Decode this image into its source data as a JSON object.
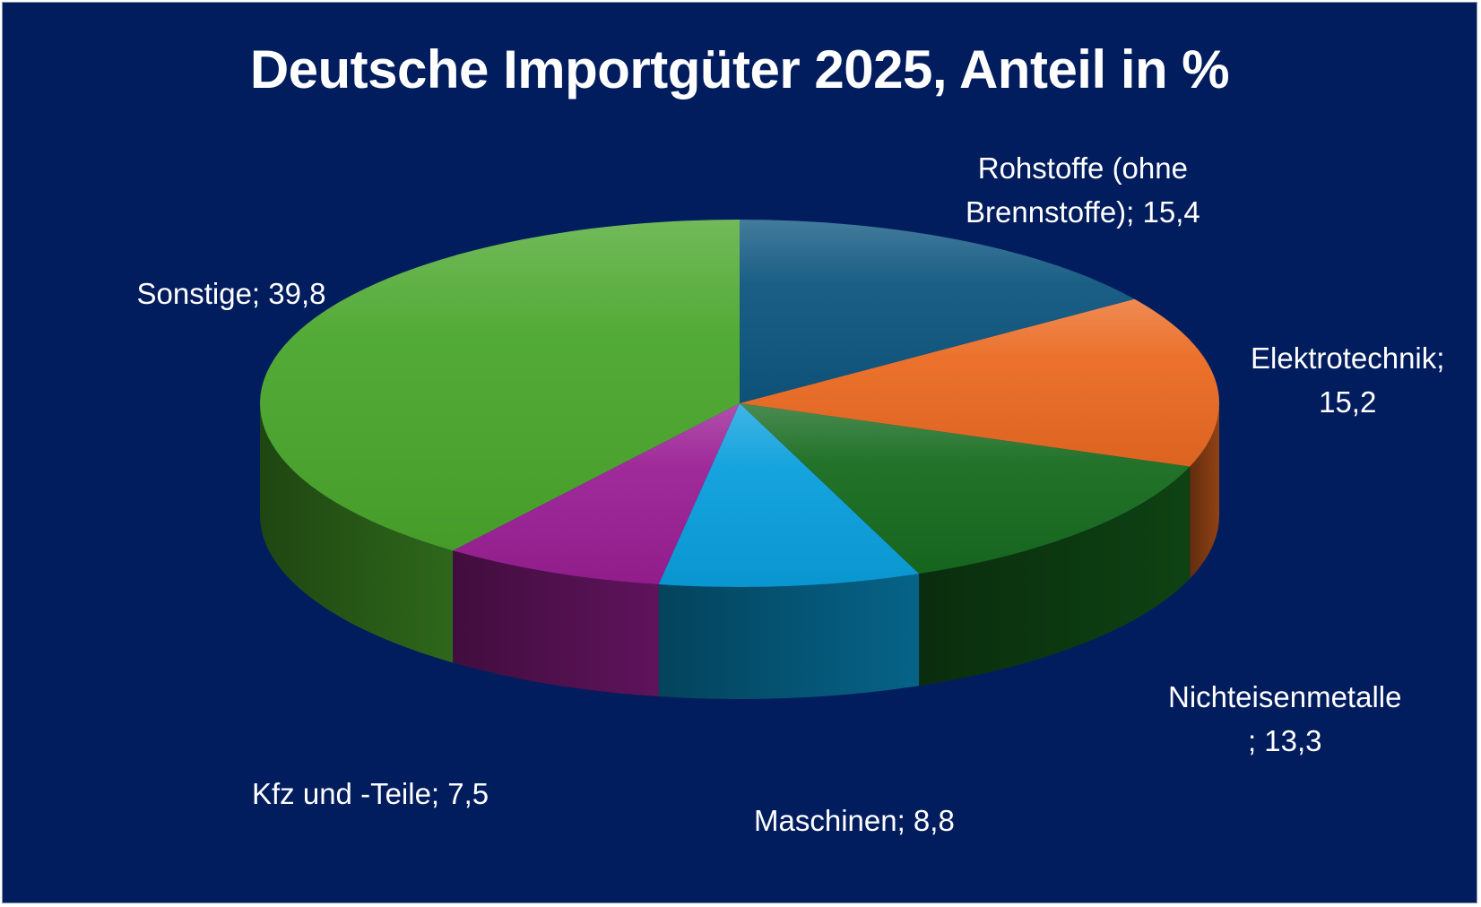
{
  "chart_data": {
    "type": "pie",
    "title": "Deutsche Importgüter 2025, Anteil in %",
    "slices": [
      {
        "category": "Rohstoffe (ohne Brennstoffe)",
        "value": 15.4,
        "color": "#0e567f",
        "label_lines": [
          "Rohstoffe (ohne",
          "Brennstoffe); 15,4"
        ]
      },
      {
        "category": "Elektrotechnik",
        "value": 15.2,
        "color": "#ea6a22",
        "label_lines": [
          "Elektrotechnik;",
          "15,2"
        ]
      },
      {
        "category": "Nichteisenmetalle",
        "value": 13.3,
        "color": "#176b1f",
        "label_lines": [
          "Nichteisenmetalle",
          "; 13,3"
        ]
      },
      {
        "category": "Maschinen",
        "value": 8.8,
        "color": "#0a9fdc",
        "label_lines": [
          "Maschinen; 8,8"
        ]
      },
      {
        "category": "Kfz und -Teile",
        "value": 7.5,
        "color": "#9a1f94",
        "label_lines": [
          "Kfz und -Teile; 7,5"
        ]
      },
      {
        "category": "Sonstige",
        "value": 39.8,
        "color": "#4aa62c",
        "label_lines": [
          "Sonstige; 39,8"
        ]
      }
    ],
    "start": "12 o'clock",
    "direction": "clockwise",
    "style": "3d"
  },
  "background_color": "#021d5e"
}
